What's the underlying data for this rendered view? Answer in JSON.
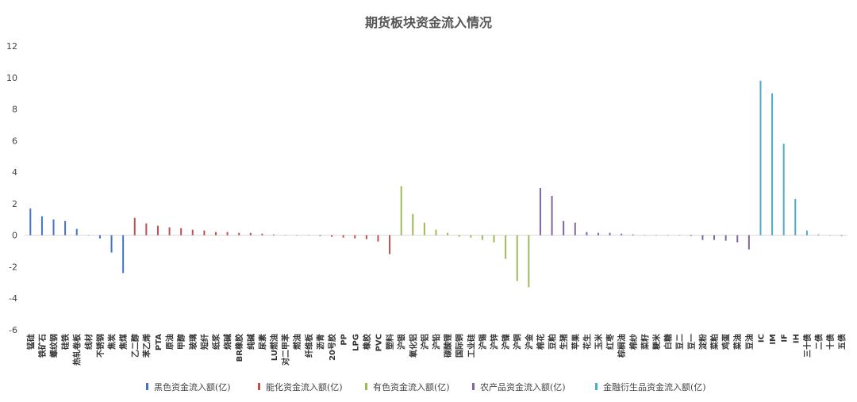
{
  "chart_data": {
    "type": "bar",
    "title": "期货板块资金流入情况",
    "ylim": [
      -6,
      12
    ],
    "yticks": [
      12,
      10,
      8,
      6,
      4,
      2,
      0,
      -2,
      -4,
      -6
    ],
    "grid": false,
    "legend_position": "bottom",
    "categories": [
      "锰硅",
      "铁矿石",
      "螺纹钢",
      "硅铁",
      "热轧卷板",
      "线材",
      "不锈钢",
      "焦炭",
      "焦煤",
      "乙二醇",
      "苯乙烯",
      "PTA",
      "原油",
      "甲醇",
      "玻璃",
      "短纤",
      "纸浆",
      "烧碱",
      "BR橡胶",
      "纯碱",
      "尿素",
      "LU燃油",
      "对二甲苯",
      "燃油",
      "纤维板",
      "沥青",
      "20号胶",
      "PP",
      "LPG",
      "橡胶",
      "PVC",
      "塑料",
      "沪银",
      "氧化铝",
      "沪铝",
      "沪铅",
      "碳酸锂",
      "国际铜",
      "工业硅",
      "沪锡",
      "沪锌",
      "沪镍",
      "沪铜",
      "沪金",
      "棉花",
      "豆粕",
      "生猪",
      "苹果",
      "花生",
      "玉米",
      "红枣",
      "棕榈油",
      "棉纱",
      "菜籽",
      "粳米",
      "白糖",
      "豆二",
      "豆一",
      "淀粉",
      "菜粕",
      "鸡蛋",
      "菜油",
      "豆油",
      "IC",
      "IM",
      "IF",
      "IH",
      "三十债",
      "二债",
      "十债",
      "五债"
    ],
    "series": [
      {
        "name": "黑色资金流入额(亿)",
        "color": "#4472C4",
        "values": [
          1.7,
          1.2,
          1.0,
          0.9,
          0.4,
          0.0,
          -0.2,
          -1.1,
          -2.4,
          null,
          null,
          null,
          null,
          null,
          null,
          null,
          null,
          null,
          null,
          null,
          null,
          null,
          null,
          null,
          null,
          null,
          null,
          null,
          null,
          null,
          null,
          null,
          null,
          null,
          null,
          null,
          null,
          null,
          null,
          null,
          null,
          null,
          null,
          null,
          null,
          null,
          null,
          null,
          null,
          null,
          null,
          null,
          null,
          null,
          null,
          null,
          null,
          null,
          null,
          null,
          null,
          null,
          null,
          null,
          null,
          null,
          null,
          null,
          null,
          null,
          null
        ]
      },
      {
        "name": "能化资金流入额(亿)",
        "color": "#C0504D",
        "values": [
          null,
          null,
          null,
          null,
          null,
          null,
          null,
          null,
          null,
          1.1,
          0.75,
          0.6,
          0.5,
          0.45,
          0.35,
          0.3,
          0.2,
          0.2,
          0.15,
          0.15,
          0.1,
          0.05,
          0.0,
          0.0,
          0.0,
          -0.05,
          -0.1,
          -0.15,
          -0.2,
          -0.25,
          -0.4,
          -1.2,
          null,
          null,
          null,
          null,
          null,
          null,
          null,
          null,
          null,
          null,
          null,
          null,
          null,
          null,
          null,
          null,
          null,
          null,
          null,
          null,
          null,
          null,
          null,
          null,
          null,
          null,
          null,
          null,
          null,
          null,
          null,
          null,
          null,
          null,
          null,
          null,
          null,
          null,
          null
        ]
      },
      {
        "name": "有色资金流入额(亿)",
        "color": "#9BBB59",
        "values": [
          null,
          null,
          null,
          null,
          null,
          null,
          null,
          null,
          null,
          null,
          null,
          null,
          null,
          null,
          null,
          null,
          null,
          null,
          null,
          null,
          null,
          null,
          null,
          null,
          null,
          null,
          null,
          null,
          null,
          null,
          null,
          null,
          3.1,
          1.35,
          0.8,
          0.35,
          0.15,
          -0.1,
          -0.15,
          -0.3,
          -0.45,
          -1.5,
          -2.9,
          -3.3,
          null,
          null,
          null,
          null,
          null,
          null,
          null,
          null,
          null,
          null,
          null,
          null,
          null,
          null,
          null,
          null,
          null,
          null,
          null,
          null,
          null,
          null,
          null,
          null,
          null,
          null,
          null
        ]
      },
      {
        "name": "农产品资金流入额(亿)",
        "color": "#8064A2",
        "values": [
          null,
          null,
          null,
          null,
          null,
          null,
          null,
          null,
          null,
          null,
          null,
          null,
          null,
          null,
          null,
          null,
          null,
          null,
          null,
          null,
          null,
          null,
          null,
          null,
          null,
          null,
          null,
          null,
          null,
          null,
          null,
          null,
          null,
          null,
          null,
          null,
          null,
          null,
          null,
          null,
          null,
          null,
          null,
          null,
          3.0,
          2.5,
          0.9,
          0.8,
          0.2,
          0.15,
          0.15,
          0.1,
          0.05,
          0.0,
          0.0,
          0.0,
          0.0,
          -0.05,
          -0.3,
          -0.3,
          -0.35,
          -0.45,
          -0.9,
          null,
          null,
          null,
          null,
          null,
          null,
          null,
          null
        ]
      },
      {
        "name": "金融衍生品资金流入额(亿)",
        "color": "#4BACC6",
        "values": [
          null,
          null,
          null,
          null,
          null,
          null,
          null,
          null,
          null,
          null,
          null,
          null,
          null,
          null,
          null,
          null,
          null,
          null,
          null,
          null,
          null,
          null,
          null,
          null,
          null,
          null,
          null,
          null,
          null,
          null,
          null,
          null,
          null,
          null,
          null,
          null,
          null,
          null,
          null,
          null,
          null,
          null,
          null,
          null,
          null,
          null,
          null,
          null,
          null,
          null,
          null,
          null,
          null,
          null,
          null,
          null,
          null,
          null,
          null,
          null,
          null,
          null,
          null,
          9.8,
          9.0,
          5.8,
          2.3,
          0.3,
          0.05,
          0.0,
          -0.05
        ]
      }
    ]
  }
}
